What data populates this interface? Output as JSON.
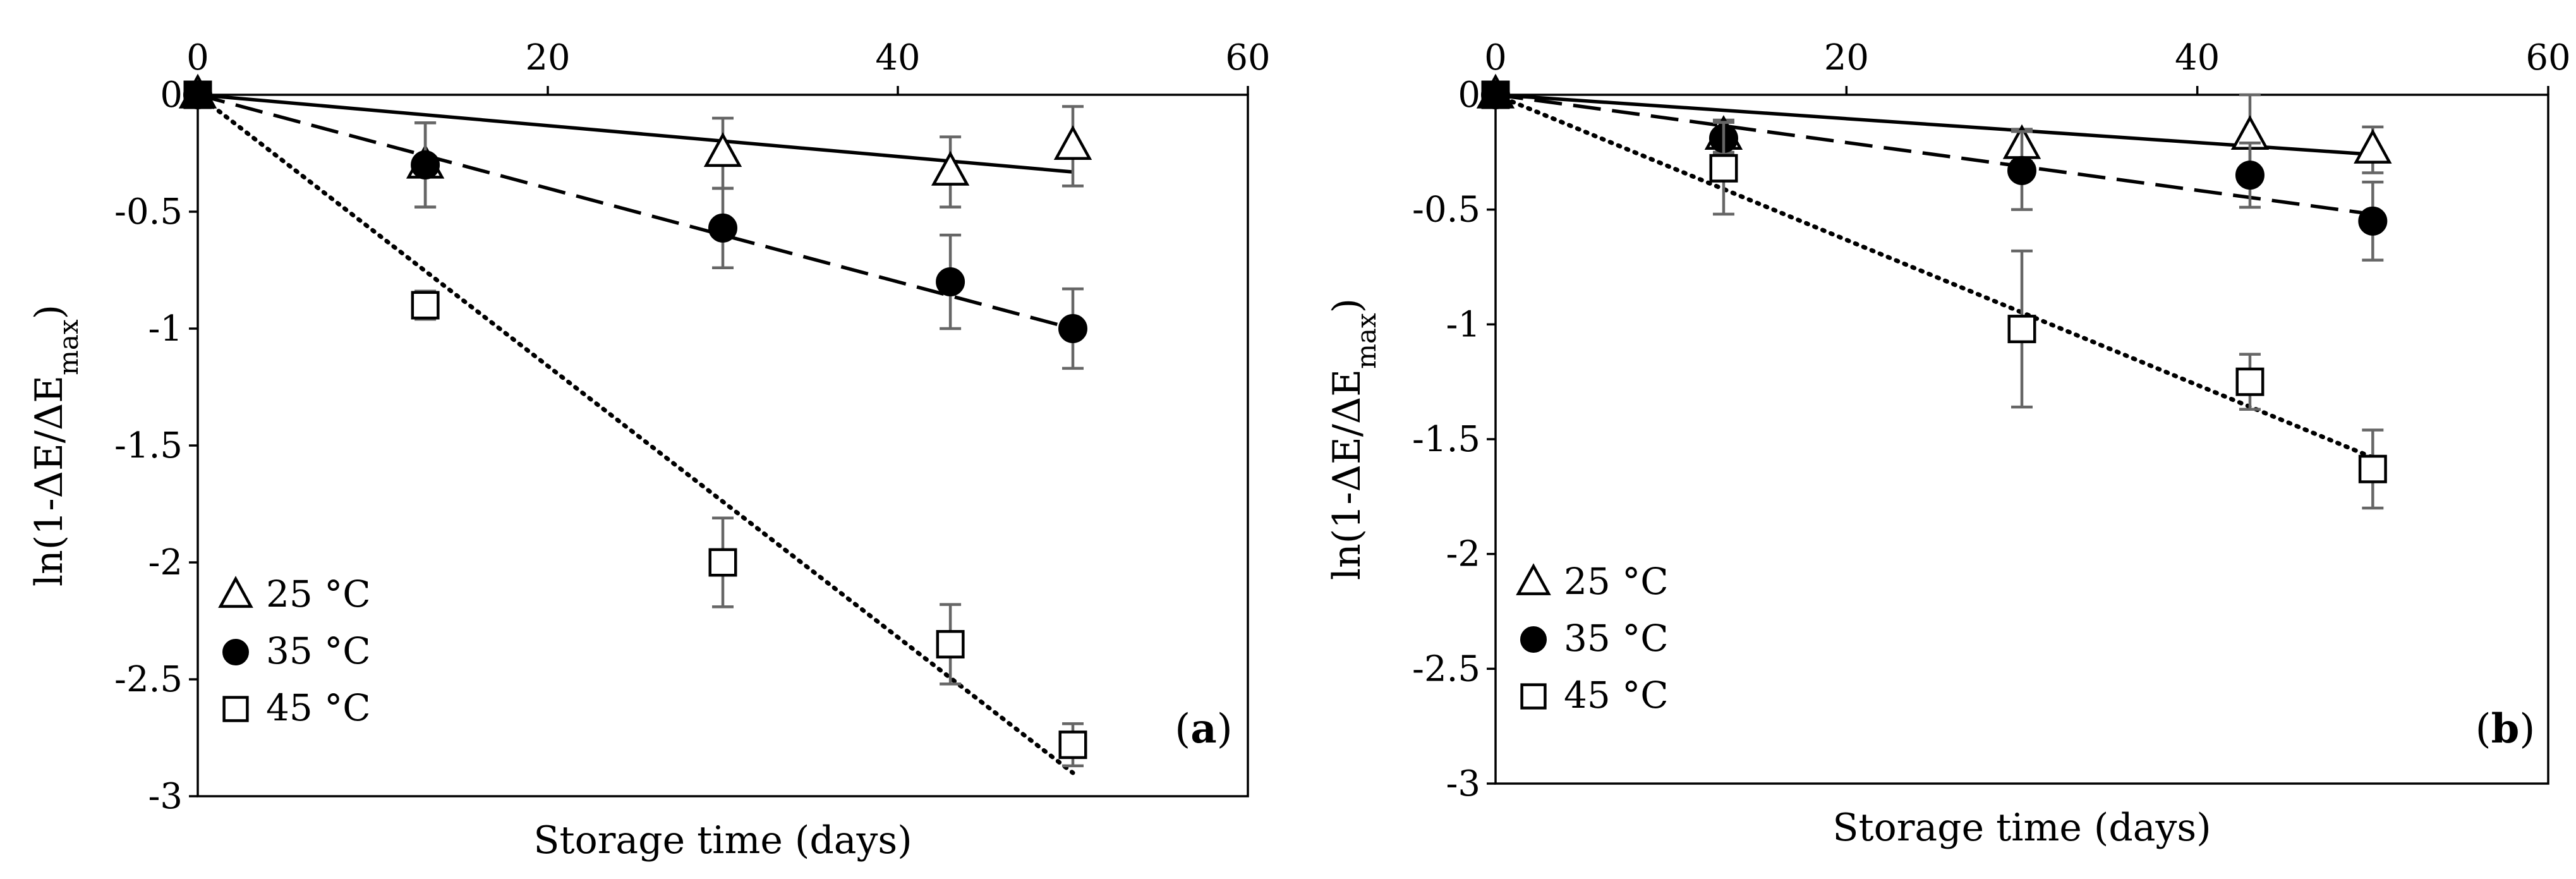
{
  "chart_data": [
    {
      "type": "scatter",
      "panel_label": "a",
      "xlabel": "Storage time (days)",
      "ylabel": "ln(1-ΔE/ΔE",
      "ylabel_sub": "max",
      "ylabel_close": ")",
      "xlim": [
        0,
        60
      ],
      "ylim": [
        -3,
        0
      ],
      "x_ticks": [
        0,
        20,
        40,
        60
      ],
      "y_ticks": [
        0,
        -0.5,
        -1,
        -1.5,
        -2,
        -2.5,
        -3
      ],
      "x_tick_labels": [
        "0",
        "20",
        "40",
        "60"
      ],
      "y_tick_labels": [
        "0",
        "-0.5",
        "-1",
        "-1.5",
        "-2",
        "-2.5",
        "-3"
      ],
      "x_axis_position": "top",
      "legend_position": "bottom-left",
      "series": [
        {
          "name": "25 °C",
          "marker": "triangle-open",
          "line": "solid",
          "x": [
            0,
            13,
            30,
            43,
            50
          ],
          "y": [
            0,
            -0.3,
            -0.25,
            -0.33,
            -0.22
          ],
          "err": [
            0,
            0.18,
            0.15,
            0.15,
            0.17
          ],
          "fit": [
            [
              0,
              0
            ],
            [
              50,
              -0.33
            ]
          ]
        },
        {
          "name": "35 °C",
          "marker": "circle-filled",
          "line": "dashed",
          "x": [
            0,
            13,
            30,
            43,
            50
          ],
          "y": [
            0,
            -0.3,
            -0.57,
            -0.8,
            -1.0
          ],
          "err": [
            0,
            0.18,
            0.17,
            0.2,
            0.17
          ],
          "fit": [
            [
              0,
              0
            ],
            [
              50,
              -1.0
            ]
          ]
        },
        {
          "name": "45 °C",
          "marker": "square-open",
          "line": "dotted",
          "x": [
            0,
            13,
            30,
            43,
            50
          ],
          "y": [
            0,
            -0.9,
            -2.0,
            -2.35,
            -2.78
          ],
          "err": [
            0,
            0.06,
            0.19,
            0.17,
            0.09
          ],
          "fit": [
            [
              0,
              0
            ],
            [
              50,
              -2.9
            ]
          ]
        }
      ]
    },
    {
      "type": "scatter",
      "panel_label": "b",
      "xlabel": "Storage time (days)",
      "ylabel": "ln(1-ΔE/ΔE",
      "ylabel_sub": "max",
      "ylabel_close": ")",
      "xlim": [
        0,
        60
      ],
      "ylim": [
        -3,
        0
      ],
      "x_ticks": [
        0,
        20,
        40,
        60
      ],
      "y_ticks": [
        0,
        -0.5,
        -1,
        -1.5,
        -2,
        -2.5,
        -3
      ],
      "x_tick_labels": [
        "0",
        "20",
        "40",
        "60"
      ],
      "y_tick_labels": [
        "0",
        "-0.5",
        "-1",
        "-1.5",
        "-2",
        "-2.5",
        "-3"
      ],
      "x_axis_position": "top",
      "legend_position": "bottom-left",
      "series": [
        {
          "name": "25 °C",
          "marker": "triangle-open",
          "line": "solid",
          "x": [
            0,
            13,
            30,
            43,
            50
          ],
          "y": [
            0,
            -0.18,
            -0.22,
            -0.18,
            -0.24
          ],
          "err": [
            0,
            0.07,
            0.07,
            0.18,
            0.1
          ],
          "fit": [
            [
              0,
              0
            ],
            [
              50,
              -0.26
            ]
          ]
        },
        {
          "name": "35 °C",
          "marker": "circle-filled",
          "line": "dashed",
          "x": [
            0,
            13,
            30,
            43,
            50
          ],
          "y": [
            0,
            -0.19,
            -0.33,
            -0.35,
            -0.55
          ],
          "err": [
            0,
            0.07,
            0.17,
            0.14,
            0.17
          ],
          "fit": [
            [
              0,
              0
            ],
            [
              50,
              -0.52
            ]
          ]
        },
        {
          "name": "45 °C",
          "marker": "square-open",
          "line": "dotted",
          "x": [
            0,
            13,
            30,
            43,
            50
          ],
          "y": [
            0,
            -0.32,
            -1.02,
            -1.25,
            -1.63
          ],
          "err": [
            0,
            0.2,
            0.34,
            0.12,
            0.17
          ],
          "fit": [
            [
              0,
              0
            ],
            [
              50,
              -1.58
            ]
          ]
        }
      ]
    }
  ]
}
